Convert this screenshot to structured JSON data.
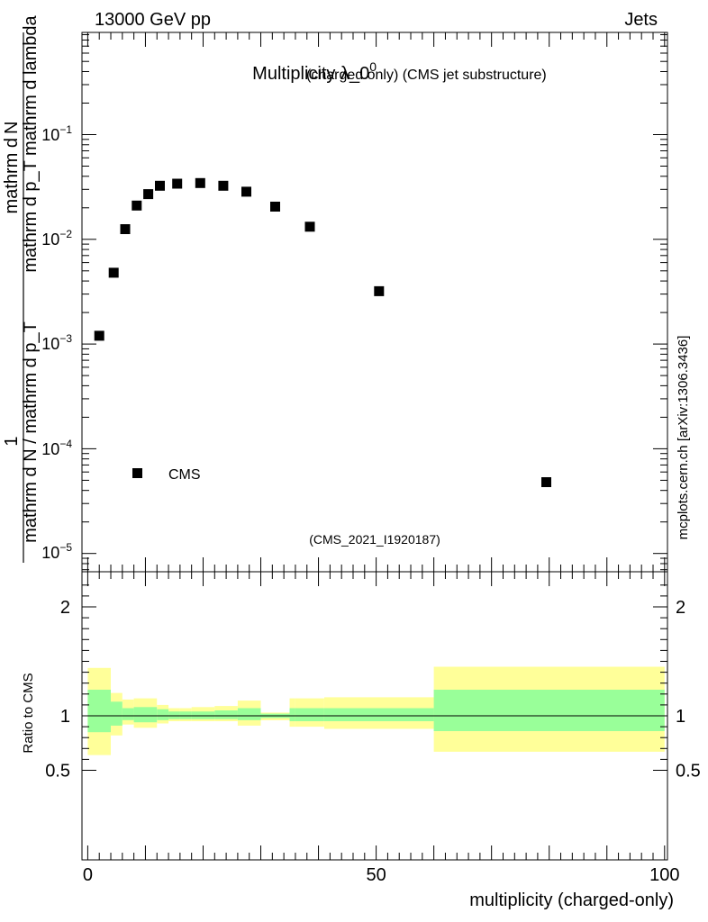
{
  "header": {
    "energy_label": "13000 GeV pp",
    "process_label": "Jets"
  },
  "side_label": "mcplots.cern.ch [arXiv:1306.3436]",
  "analysis_id": "(CMS_2021_I1920187)",
  "colors": {
    "frame": "#000000",
    "markers": "#000000",
    "band_outer": "#ffff99",
    "band_inner": "#99ff99",
    "analysis_id": "#999999"
  },
  "chart_data": [
    {
      "type": "scatter",
      "title": {
        "main": "Multiplicity λ_0",
        "superscript": "0",
        "suffix": "(charged only) (CMS jet substructure)"
      },
      "ylabel": {
        "numerator_1": "mathrm d",
        "numerator_2": "N",
        "numerator_3": "mathrm d p_T mathrm d lambda",
        "denominator_prefix": "1",
        "denominator": "mathrm d N / mathrm d p_T"
      },
      "yscale": "log",
      "xlim": [
        -1,
        100.5
      ],
      "ylim": [
        7e-06,
        0.9
      ],
      "ytick_labels": [
        "10^{-5}",
        "10^{-4}",
        "10^{-3}",
        "10^{-2}",
        "10^{-1}"
      ],
      "legend": {
        "position": "bottom-left"
      },
      "series": [
        {
          "name": "CMS",
          "x": [
            2,
            4.5,
            6.5,
            8.5,
            10.5,
            12.5,
            15.5,
            19.5,
            23.5,
            27.5,
            32.5,
            38.5,
            50.5,
            79.5
          ],
          "y": [
            0.0012,
            0.0048,
            0.0125,
            0.021,
            0.027,
            0.0325,
            0.034,
            0.0345,
            0.0325,
            0.0285,
            0.0205,
            0.0132,
            0.0032,
            4.8e-05
          ]
        }
      ]
    },
    {
      "type": "area",
      "ylabel": "Ratio to CMS",
      "xlabel": "multiplicity (charged-only)",
      "xlim": [
        -1,
        100.5
      ],
      "ylim": [
        0.4,
        2.25
      ],
      "xticks": [
        0,
        50,
        100
      ],
      "yticks": [
        0.5,
        1,
        2
      ],
      "yscale": "linear",
      "reference_line": 1,
      "bins": {
        "edges": [
          0,
          4,
          6,
          8,
          12,
          14,
          16,
          18,
          22,
          26,
          30,
          35,
          36,
          41,
          60,
          100
        ],
        "outer_low": [
          0.64,
          0.82,
          0.92,
          0.89,
          0.93,
          0.95,
          0.95,
          0.95,
          0.95,
          0.91,
          0.96,
          0.9,
          0.9,
          0.88,
          0.67
        ],
        "outer_high": [
          1.44,
          1.21,
          1.15,
          1.16,
          1.1,
          1.07,
          1.07,
          1.08,
          1.09,
          1.14,
          1.03,
          1.16,
          1.16,
          1.17,
          1.45
        ],
        "inner_low": [
          0.85,
          0.91,
          0.96,
          0.94,
          0.96,
          0.97,
          0.97,
          0.97,
          0.97,
          0.96,
          0.98,
          0.95,
          0.95,
          0.95,
          0.86
        ],
        "inner_high": [
          1.24,
          1.13,
          1.07,
          1.08,
          1.06,
          1.04,
          1.04,
          1.04,
          1.05,
          1.07,
          1.02,
          1.07,
          1.07,
          1.07,
          1.24
        ]
      }
    }
  ]
}
